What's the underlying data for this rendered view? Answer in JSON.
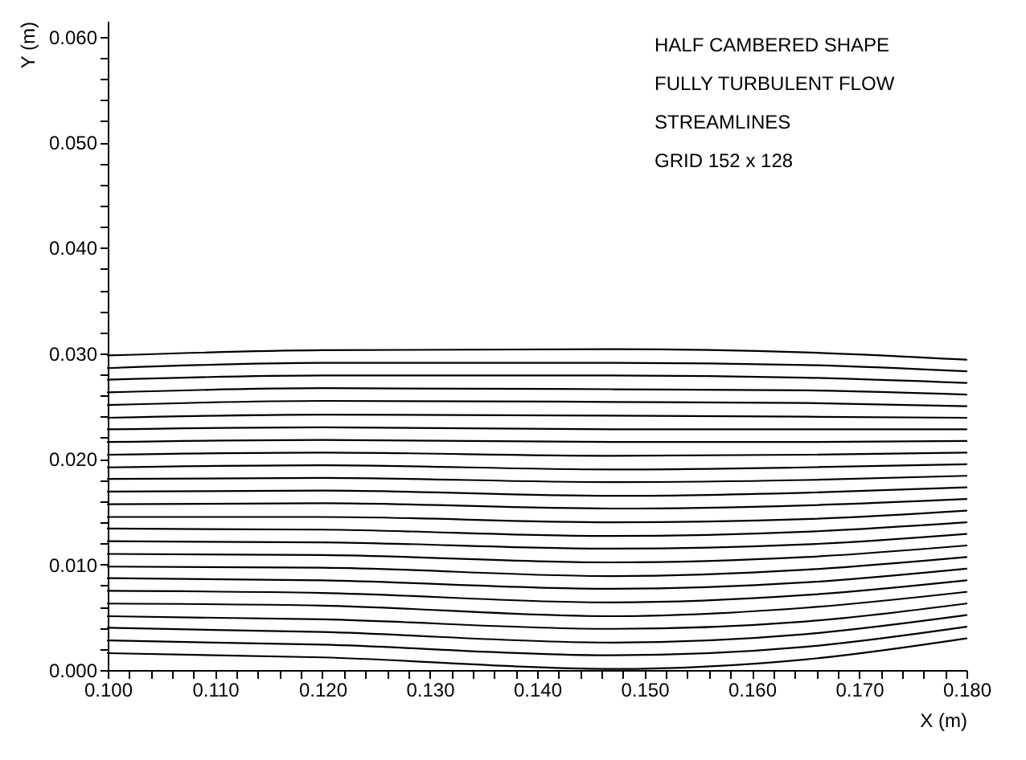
{
  "chart_data": {
    "type": "line",
    "xlabel": "X (m)",
    "ylabel": "Y (m)",
    "annotations": [
      "HALF CAMBERED SHAPE",
      "FULLY TURBULENT FLOW",
      "STREAMLINES",
      "GRID 152 x 128"
    ],
    "x": [
      0.1,
      0.12,
      0.147,
      0.165,
      0.18
    ],
    "series": [
      {
        "color": "#000000",
        "values": [
          0.0016,
          0.0012,
          0.0001,
          0.001,
          0.003
        ]
      },
      {
        "color": "#000000",
        "values": [
          0.0028,
          0.0024,
          0.0014,
          0.0022,
          0.0041
        ]
      },
      {
        "color": "#000000",
        "values": [
          0.004,
          0.0036,
          0.0026,
          0.0034,
          0.0052
        ]
      },
      {
        "color": "#000000",
        "values": [
          0.0051,
          0.0048,
          0.0039,
          0.0046,
          0.0063
        ]
      },
      {
        "color": "#000000",
        "values": [
          0.0063,
          0.0061,
          0.0051,
          0.0059,
          0.0074
        ]
      },
      {
        "color": "#000000",
        "values": [
          0.0075,
          0.0073,
          0.0064,
          0.0071,
          0.0085
        ]
      },
      {
        "color": "#000000",
        "values": [
          0.0087,
          0.0085,
          0.0077,
          0.0083,
          0.0096
        ]
      },
      {
        "color": "#000000",
        "values": [
          0.0098,
          0.0097,
          0.0089,
          0.0095,
          0.0107
        ]
      },
      {
        "color": "#000000",
        "values": [
          0.011,
          0.0109,
          0.0102,
          0.0107,
          0.0118
        ]
      },
      {
        "color": "#000000",
        "values": [
          0.0122,
          0.0121,
          0.0115,
          0.0119,
          0.0129
        ]
      },
      {
        "color": "#000000",
        "values": [
          0.0134,
          0.0133,
          0.0127,
          0.0131,
          0.014
        ]
      },
      {
        "color": "#000000",
        "values": [
          0.0145,
          0.0145,
          0.014,
          0.0143,
          0.0151
        ]
      },
      {
        "color": "#000000",
        "values": [
          0.0157,
          0.0158,
          0.0153,
          0.0156,
          0.0162
        ]
      },
      {
        "color": "#000000",
        "values": [
          0.0169,
          0.017,
          0.0165,
          0.0168,
          0.0173
        ]
      },
      {
        "color": "#000000",
        "values": [
          0.0181,
          0.0182,
          0.0178,
          0.018,
          0.0184
        ]
      },
      {
        "color": "#000000",
        "values": [
          0.0192,
          0.0194,
          0.019,
          0.0192,
          0.0195
        ]
      },
      {
        "color": "#000000",
        "values": [
          0.0204,
          0.0206,
          0.0203,
          0.0204,
          0.0206
        ]
      },
      {
        "color": "#000000",
        "values": [
          0.0216,
          0.0218,
          0.0216,
          0.0216,
          0.0217
        ]
      },
      {
        "color": "#000000",
        "values": [
          0.0228,
          0.023,
          0.0228,
          0.0228,
          0.0228
        ]
      },
      {
        "color": "#000000",
        "values": [
          0.0239,
          0.0242,
          0.0241,
          0.024,
          0.0239
        ]
      },
      {
        "color": "#000000",
        "values": [
          0.0251,
          0.0255,
          0.0254,
          0.0253,
          0.025
        ]
      },
      {
        "color": "#000000",
        "values": [
          0.0263,
          0.0267,
          0.0266,
          0.0265,
          0.0261
        ]
      },
      {
        "color": "#000000",
        "values": [
          0.0275,
          0.0279,
          0.0279,
          0.0277,
          0.0272
        ]
      },
      {
        "color": "#000000",
        "values": [
          0.0286,
          0.0291,
          0.0291,
          0.0289,
          0.0283
        ]
      },
      {
        "color": "#000000",
        "values": [
          0.0298,
          0.0303,
          0.0304,
          0.0301,
          0.0294
        ]
      }
    ],
    "xlim": [
      0.1,
      0.18
    ],
    "xticks": [
      {
        "value": 0.1,
        "label": "0.100"
      },
      {
        "value": 0.102,
        "label": null
      },
      {
        "value": 0.104,
        "label": null
      },
      {
        "value": 0.106,
        "label": null
      },
      {
        "value": 0.108,
        "label": null
      },
      {
        "value": 0.11,
        "label": "0.110"
      },
      {
        "value": 0.112,
        "label": null
      },
      {
        "value": 0.114,
        "label": null
      },
      {
        "value": 0.116,
        "label": null
      },
      {
        "value": 0.118,
        "label": null
      },
      {
        "value": 0.12,
        "label": "0.120"
      },
      {
        "value": 0.122,
        "label": null
      },
      {
        "value": 0.124,
        "label": null
      },
      {
        "value": 0.126,
        "label": null
      },
      {
        "value": 0.128,
        "label": null
      },
      {
        "value": 0.13,
        "label": "0.130"
      },
      {
        "value": 0.132,
        "label": null
      },
      {
        "value": 0.134,
        "label": null
      },
      {
        "value": 0.136,
        "label": null
      },
      {
        "value": 0.138,
        "label": null
      },
      {
        "value": 0.14,
        "label": "0.140"
      },
      {
        "value": 0.142,
        "label": null
      },
      {
        "value": 0.144,
        "label": null
      },
      {
        "value": 0.146,
        "label": null
      },
      {
        "value": 0.148,
        "label": null
      },
      {
        "value": 0.15,
        "label": "0.150"
      },
      {
        "value": 0.152,
        "label": null
      },
      {
        "value": 0.154,
        "label": null
      },
      {
        "value": 0.156,
        "label": null
      },
      {
        "value": 0.158,
        "label": null
      },
      {
        "value": 0.16,
        "label": "0.160"
      },
      {
        "value": 0.162,
        "label": null
      },
      {
        "value": 0.164,
        "label": null
      },
      {
        "value": 0.166,
        "label": null
      },
      {
        "value": 0.168,
        "label": null
      },
      {
        "value": 0.17,
        "label": "0.170"
      },
      {
        "value": 0.172,
        "label": null
      },
      {
        "value": 0.174,
        "label": null
      },
      {
        "value": 0.176,
        "label": null
      },
      {
        "value": 0.178,
        "label": null
      },
      {
        "value": 0.18,
        "label": "0.180"
      }
    ],
    "ylim": [
      0,
      0.0615
    ],
    "yticks": [
      {
        "value": 0,
        "label": "0.000"
      },
      {
        "value": 0.002,
        "label": null
      },
      {
        "value": 0.004,
        "label": null
      },
      {
        "value": 0.006,
        "label": null
      },
      {
        "value": 0.008,
        "label": null
      },
      {
        "value": 0.01,
        "label": "0.010"
      },
      {
        "value": 0.012,
        "label": null
      },
      {
        "value": 0.014,
        "label": null
      },
      {
        "value": 0.016,
        "label": null
      },
      {
        "value": 0.018,
        "label": null
      },
      {
        "value": 0.02,
        "label": "0.020"
      },
      {
        "value": 0.022,
        "label": null
      },
      {
        "value": 0.024,
        "label": null
      },
      {
        "value": 0.026,
        "label": null
      },
      {
        "value": 0.028,
        "label": null
      },
      {
        "value": 0.03,
        "label": "0.030"
      },
      {
        "value": 0.032,
        "label": null
      },
      {
        "value": 0.034,
        "label": null
      },
      {
        "value": 0.036,
        "label": null
      },
      {
        "value": 0.038,
        "label": null
      },
      {
        "value": 0.04,
        "label": "0.040"
      },
      {
        "value": 0.042,
        "label": null
      },
      {
        "value": 0.044,
        "label": null
      },
      {
        "value": 0.046,
        "label": null
      },
      {
        "value": 0.048,
        "label": null
      },
      {
        "value": 0.05,
        "label": "0.050"
      },
      {
        "value": 0.052,
        "label": null
      },
      {
        "value": 0.054,
        "label": null
      },
      {
        "value": 0.056,
        "label": null
      },
      {
        "value": 0.058,
        "label": null
      },
      {
        "value": 0.06,
        "label": "0.060"
      }
    ],
    "grid": false,
    "legend": false,
    "marker": "none",
    "line_style": "solid"
  }
}
